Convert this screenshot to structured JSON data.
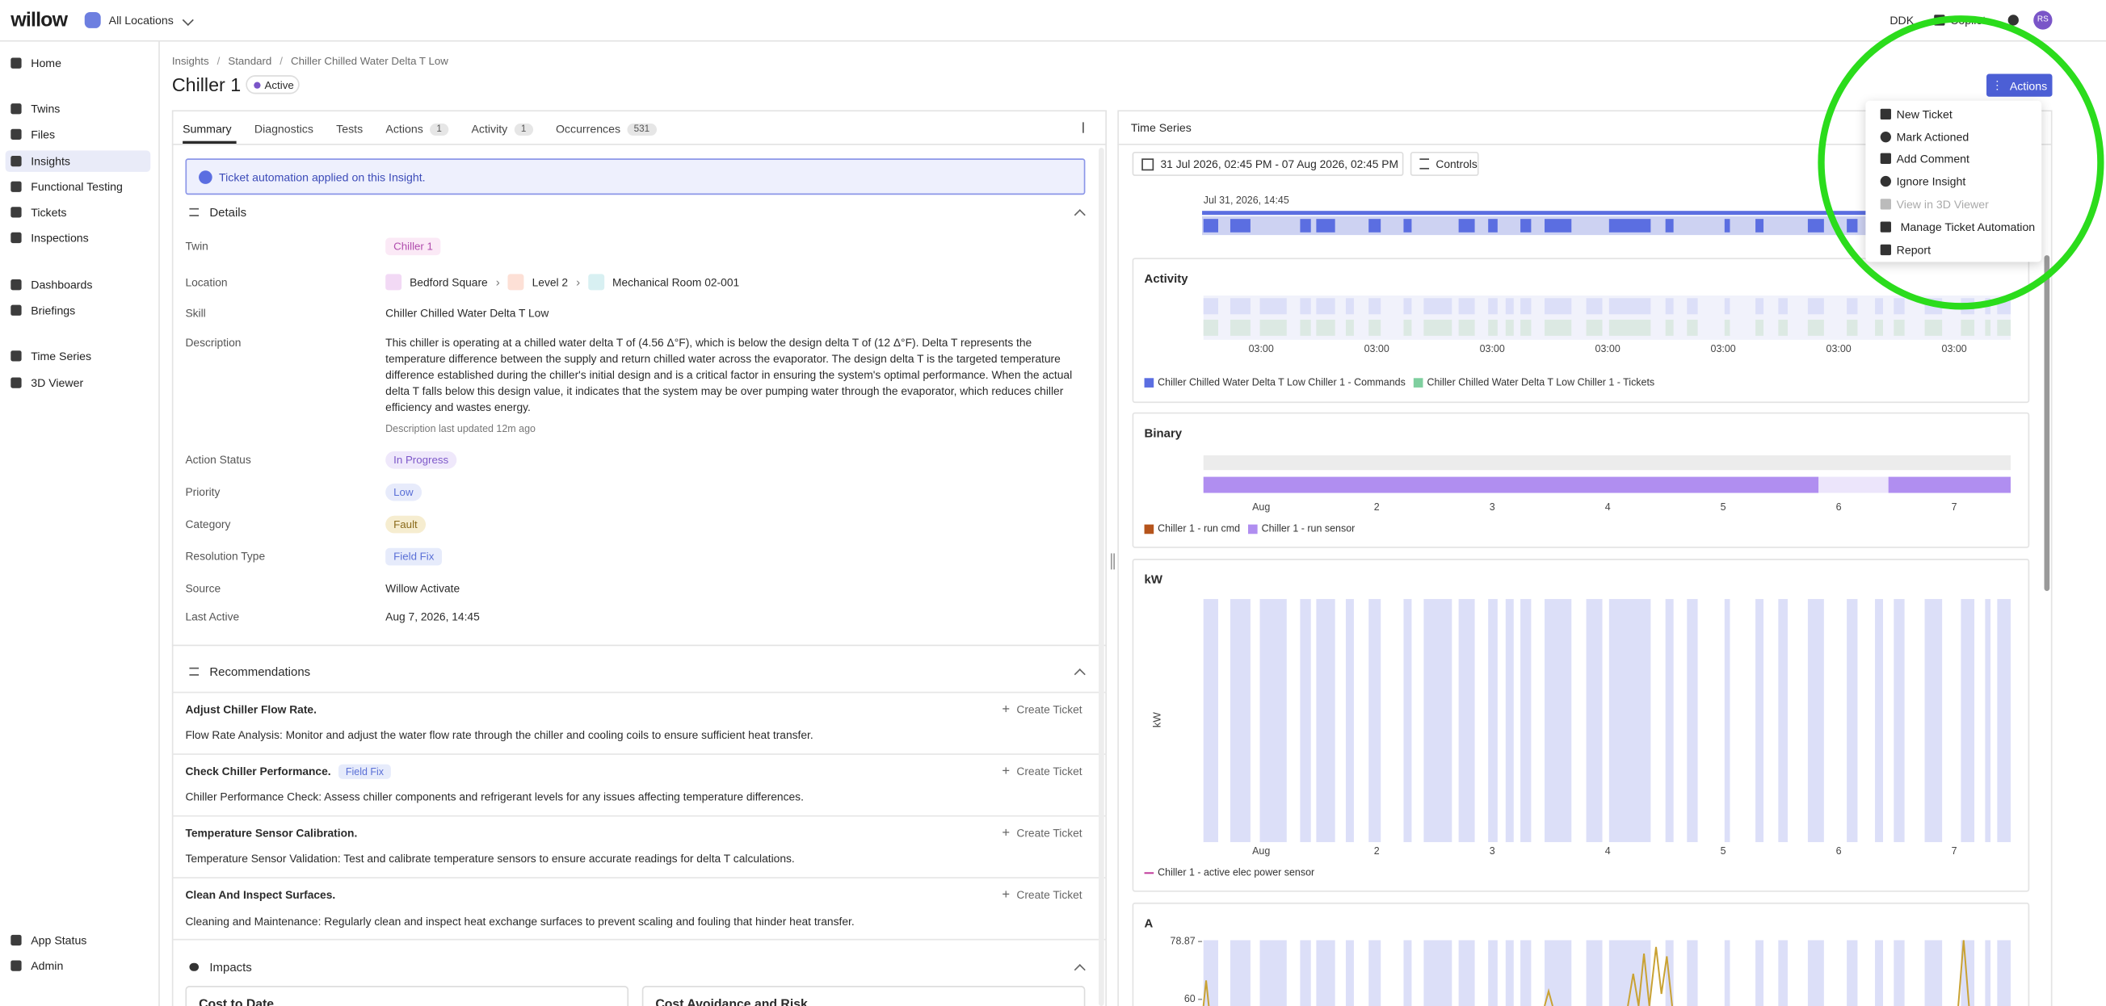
{
  "header": {
    "logo": "willow",
    "location": "All Locations",
    "user_code": "DDK",
    "copilot": "Copilot",
    "avatar": "RS"
  },
  "sidebar": {
    "items": [
      "Home",
      "Twins",
      "Files",
      "Insights",
      "Functional Testing",
      "Tickets",
      "Inspections",
      "Dashboards",
      "Briefings",
      "Time Series",
      "3D Viewer"
    ],
    "selected": "Insights",
    "bottom": [
      "App Status",
      "Admin"
    ]
  },
  "breadcrumb": [
    "Insights",
    "Standard",
    "Chiller Chilled Water Delta T Low"
  ],
  "title": "Chiller 1",
  "status": "Active",
  "actions_button": "Actions",
  "tabs": [
    {
      "label": "Summary"
    },
    {
      "label": "Diagnostics"
    },
    {
      "label": "Tests"
    },
    {
      "label": "Actions",
      "count": 1
    },
    {
      "label": "Activity",
      "count": 1
    },
    {
      "label": "Occurrences",
      "count": 531
    }
  ],
  "banner": "Ticket automation applied on this Insight.",
  "details": {
    "heading": "Details",
    "rows": [
      {
        "label": "Twin",
        "value": "Chiller 1"
      },
      {
        "label": "Location",
        "values": [
          "Bedford Square",
          "Level 2",
          "Mechanical Room 02-001"
        ]
      },
      {
        "label": "Skill",
        "value": "Chiller Chilled Water Delta T Low"
      },
      {
        "label": "Description",
        "value": "This chiller is operating at a chilled water delta T of (4.56 Δ°F), which is below the design delta T of (12 Δ°F). Delta T represents the temperature difference between the supply and return chilled water across the evaporator. The design delta T is the targeted temperature difference established during the chiller's initial design and is a critical factor in ensuring the system's optimal performance. When the actual delta T falls below this design value, it indicates that the system may be over pumping water through the evaporator, which reduces chiller efficiency and wastes energy.",
        "note": "Description last updated 12m ago"
      },
      {
        "label": "Action Status",
        "value": "In Progress"
      },
      {
        "label": "Priority",
        "value": "Low"
      },
      {
        "label": "Category",
        "value": "Fault"
      },
      {
        "label": "Resolution Type",
        "value": "Field Fix"
      },
      {
        "label": "Source",
        "value": "Willow Activate"
      },
      {
        "label": "Last Active",
        "value": "Aug 7, 2026, 14:45"
      }
    ]
  },
  "recommendations": {
    "heading": "Recommendations",
    "create_ticket": "Create Ticket",
    "items": [
      {
        "title": "Adjust Chiller Flow Rate.",
        "text": "Flow Rate Analysis: Monitor and adjust the water flow rate through the chiller and cooling coils to ensure sufficient heat transfer."
      },
      {
        "title": "Check Chiller Performance.",
        "tag": "Field Fix",
        "text": "Chiller Performance Check: Assess chiller components and refrigerant levels for any issues affecting temperature differences."
      },
      {
        "title": "Temperature Sensor Calibration.",
        "text": "Temperature Sensor Validation: Test and calibrate temperature sensors to ensure accurate readings for delta T calculations."
      },
      {
        "title": "Clean And Inspect Surfaces.",
        "text": "Cleaning and Maintenance: Regularly clean and inspect heat exchange surfaces to prevent scaling and fouling that hinder heat transfer."
      }
    ]
  },
  "impacts": {
    "heading": "Impacts",
    "cards": [
      "Cost to Date",
      "Cost Avoidance and Risk"
    ]
  },
  "time_series": {
    "heading": "Time Series",
    "date_range": "31 Jul 2026, 02:45 PM - 07 Aug 2026, 02:45 PM",
    "controls": "Controls",
    "overview_label": "Jul 31, 2026, 14:45",
    "panels": [
      {
        "title": "Activity",
        "xticks": [
          "03:00",
          "03:00",
          "03:00",
          "03:00",
          "03:00",
          "03:00",
          "03:00"
        ],
        "legend": [
          {
            "name": "Chiller Chilled Water Delta T Low Chiller 1 - Commands",
            "color": "#5b6ee1"
          },
          {
            "name": "Chiller Chilled Water Delta T Low Chiller 1 - Tickets",
            "color": "#7fcf9f"
          }
        ]
      },
      {
        "title": "Binary",
        "xticks": [
          "Aug",
          "2",
          "3",
          "4",
          "5",
          "6",
          "7"
        ],
        "legend": [
          {
            "name": "Chiller 1 - run cmd",
            "color": "#b5541c"
          },
          {
            "name": "Chiller 1 - run sensor",
            "color": "#b08ef0"
          }
        ]
      },
      {
        "title": "kW",
        "y_label": "kW",
        "xticks": [
          "Aug",
          "2",
          "3",
          "4",
          "5",
          "6",
          "7"
        ],
        "legend": [
          {
            "name": "Chiller 1 - active elec power sensor",
            "color": "#c0399a"
          }
        ]
      },
      {
        "title": "A",
        "yticks": [
          78.87,
          60
        ]
      }
    ]
  },
  "menu": {
    "items": [
      {
        "label": "New Ticket"
      },
      {
        "label": "Mark Actioned"
      },
      {
        "label": "Add Comment"
      },
      {
        "label": "Ignore Insight"
      },
      {
        "label": "View in 3D Viewer",
        "disabled": true
      },
      {
        "label": "Manage Ticket Automation"
      },
      {
        "label": "Report"
      }
    ]
  }
}
